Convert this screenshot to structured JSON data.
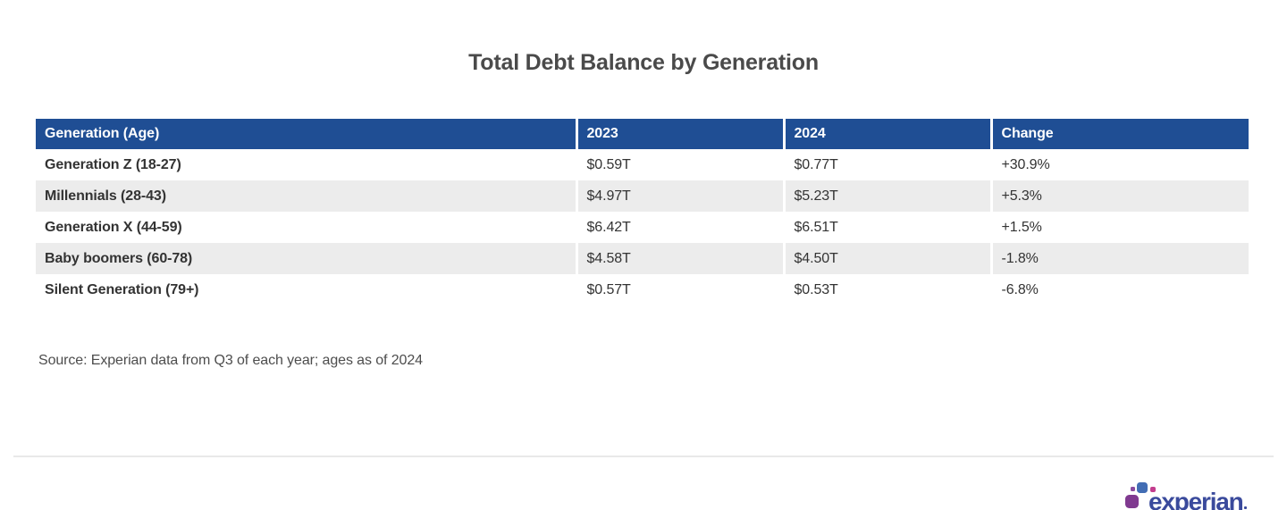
{
  "page": {
    "title": "Total Debt Balance by Generation",
    "source_note": "Source: Experian data from Q3 of each year; ages as of 2024"
  },
  "table": {
    "columns": [
      "Generation (Age)",
      "2023",
      "2024",
      "Change"
    ],
    "rows": [
      [
        "Generation Z (18-27)",
        "$0.59T",
        "$0.77T",
        "+30.9%"
      ],
      [
        "Millennials (28-43)",
        "$4.97T",
        "$5.23T",
        "+5.3%"
      ],
      [
        "Generation X (44-59)",
        "$6.42T",
        "$6.51T",
        "+1.5%"
      ],
      [
        "Baby boomers (60-78)",
        "$4.58T",
        "$4.50T",
        "-1.8%"
      ],
      [
        "Silent Generation (79+)",
        "$0.57T",
        "$0.53T",
        "-6.8%"
      ]
    ]
  },
  "chart_data": {
    "type": "table",
    "title": "Total Debt Balance by Generation",
    "columns": [
      "Generation (Age)",
      "2023",
      "2024",
      "Change"
    ],
    "rows": [
      [
        "Generation Z (18-27)",
        "$0.59T",
        "$0.77T",
        "+30.9%"
      ],
      [
        "Millennials (28-43)",
        "$4.97T",
        "$5.23T",
        "+5.3%"
      ],
      [
        "Generation X (44-59)",
        "$6.42T",
        "$6.51T",
        "+1.5%"
      ],
      [
        "Baby boomers (60-78)",
        "$4.58T",
        "$4.50T",
        "-1.8%"
      ],
      [
        "Silent Generation (79+)",
        "$0.57T",
        "$0.53T",
        "-6.8%"
      ]
    ],
    "values_2023_trillions": [
      0.59,
      4.97,
      6.42,
      4.58,
      0.57
    ],
    "values_2024_trillions": [
      0.77,
      5.23,
      6.51,
      4.5,
      0.53
    ],
    "change_percent": [
      30.9,
      5.3,
      1.5,
      -1.8,
      -6.8
    ],
    "source_note": "Source: Experian data from Q3 of each year; ages as of 2024"
  },
  "logo": {
    "wordmark": "experian"
  },
  "colors": {
    "header_bg": "#1f4e94",
    "stripe_bg": "#ececec",
    "body_text": "#333333",
    "title_text": "#4a4a4a",
    "logo_wordmark": "#3a4a9c",
    "logo_blue": "#426db4",
    "logo_purple": "#803a90",
    "logo_magenta": "#c0338a"
  }
}
